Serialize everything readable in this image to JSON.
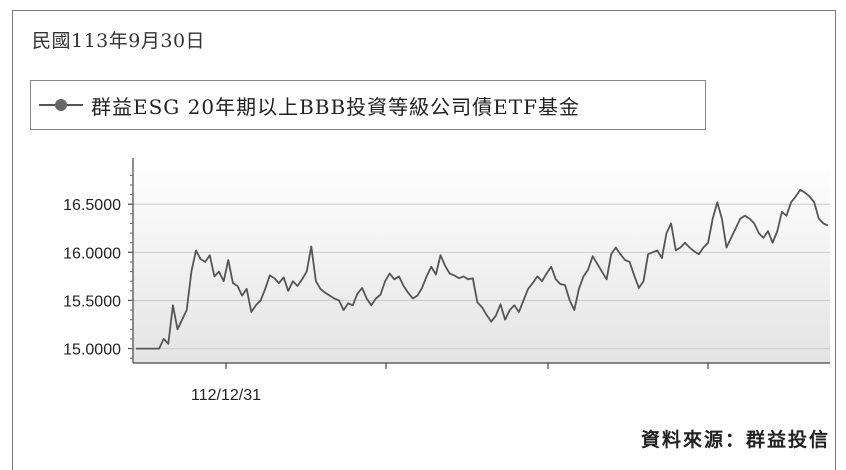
{
  "header": {
    "date": "民國113年9月30日"
  },
  "legend": {
    "label": "群益ESG 20年期以上BBB投資等級公司債ETF基金",
    "marker": "line-with-circle-icon"
  },
  "footer": {
    "source": "資料來源：群益投信"
  },
  "colors": {
    "line": "#555555",
    "grid": "#cccccc",
    "plot_bg_top": "#ffffff",
    "plot_bg_bottom": "#e4e4e4"
  },
  "chart_data": {
    "type": "line",
    "title": "",
    "xlabel": "",
    "ylabel": "",
    "ylim": [
      14.85,
      16.98
    ],
    "yticks": [
      "15.0000",
      "15.5000",
      "16.0000",
      "16.5000"
    ],
    "ytick_values": [
      15.0,
      15.5,
      16.0,
      16.5
    ],
    "xticks": [
      "112/12/31"
    ],
    "grid": "horizontal",
    "legend_position": "top-left",
    "series": [
      {
        "name": "群益ESG 20年期以上BBB投資等級公司債ETF基金",
        "values": [
          15.0,
          15.0,
          15.0,
          15.0,
          15.0,
          15.0,
          15.1,
          15.05,
          15.45,
          15.2,
          15.3,
          15.4,
          15.8,
          16.02,
          15.93,
          15.9,
          15.97,
          15.75,
          15.8,
          15.7,
          15.92,
          15.68,
          15.65,
          15.55,
          15.62,
          15.38,
          15.45,
          15.5,
          15.62,
          15.76,
          15.73,
          15.68,
          15.74,
          15.6,
          15.7,
          15.65,
          15.72,
          15.8,
          16.06,
          15.7,
          15.62,
          15.58,
          15.55,
          15.52,
          15.5,
          15.4,
          15.47,
          15.45,
          15.57,
          15.63,
          15.52,
          15.45,
          15.52,
          15.56,
          15.7,
          15.78,
          15.72,
          15.75,
          15.65,
          15.58,
          15.52,
          15.55,
          15.63,
          15.75,
          15.85,
          15.77,
          15.97,
          15.86,
          15.78,
          15.76,
          15.73,
          15.75,
          15.72,
          15.73,
          15.48,
          15.43,
          15.35,
          15.28,
          15.34,
          15.46,
          15.3,
          15.4,
          15.45,
          15.38,
          15.5,
          15.62,
          15.68,
          15.75,
          15.7,
          15.78,
          15.85,
          15.72,
          15.67,
          15.66,
          15.5,
          15.4,
          15.62,
          15.75,
          15.82,
          15.96,
          15.88,
          15.8,
          15.72,
          15.98,
          16.05,
          15.98,
          15.92,
          15.9,
          15.76,
          15.63,
          15.7,
          15.98,
          16.0,
          16.02,
          15.94,
          16.2,
          16.3,
          16.02,
          16.05,
          16.1,
          16.05,
          16.01,
          15.98,
          16.05,
          16.1,
          16.35,
          16.52,
          16.35,
          16.05,
          16.15,
          16.25,
          16.35,
          16.38,
          16.35,
          16.3,
          16.2,
          16.15,
          16.22,
          16.1,
          16.22,
          16.42,
          16.38,
          16.52,
          16.58,
          16.65,
          16.62,
          16.58,
          16.52,
          16.35,
          16.3,
          16.28
        ]
      }
    ]
  }
}
